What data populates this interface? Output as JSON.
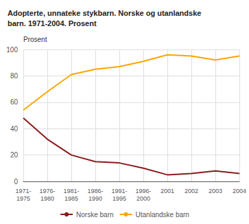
{
  "chart_data": {
    "type": "line",
    "title": "Adopterte, unnateke stykbarn. Norske og utanlandske\nbarn. 1971-2004. Prosent",
    "ylabel": "Prosent",
    "categories": [
      "1971-\n1975",
      "1976-\n1980",
      "1981-\n1985",
      "1986-\n1990",
      "1991-\n1995",
      "1996-\n2000",
      "2001",
      "2002",
      "2003",
      "2004"
    ],
    "series": [
      {
        "name": "Norske barn",
        "color": "#8B1A1A",
        "values": [
          48,
          32,
          20,
          15,
          14,
          10,
          5,
          6,
          8,
          6
        ]
      },
      {
        "name": "Utanlandske barn",
        "color": "#FFA500",
        "values": [
          54,
          68,
          81,
          85,
          87,
          91,
          96,
          95,
          92,
          95
        ]
      }
    ],
    "ylim": [
      0,
      100
    ],
    "yticks": [
      0,
      20,
      40,
      60,
      80,
      100
    ],
    "grid": true,
    "legend": "bottom"
  }
}
